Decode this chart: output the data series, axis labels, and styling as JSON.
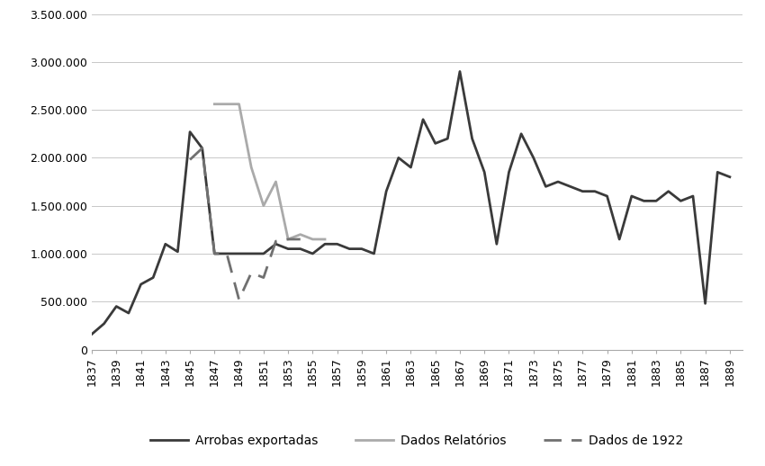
{
  "arrobas_exportadas_years": [
    1837,
    1838,
    1839,
    1840,
    1841,
    1842,
    1843,
    1844,
    1845,
    1846,
    1847,
    1848,
    1849,
    1850,
    1851,
    1852,
    1853,
    1854,
    1855,
    1856,
    1857,
    1858,
    1859,
    1860,
    1861,
    1862,
    1863,
    1864,
    1865,
    1866,
    1867,
    1868,
    1869,
    1870,
    1871,
    1872,
    1873,
    1874,
    1875,
    1876,
    1877,
    1878,
    1879,
    1880,
    1881,
    1882,
    1883,
    1884,
    1885,
    1886,
    1887,
    1888,
    1889
  ],
  "arrobas_exportadas": [
    160000,
    270000,
    450000,
    380000,
    680000,
    750000,
    1100000,
    1020000,
    2270000,
    2100000,
    1000000,
    1000000,
    1000000,
    1000000,
    1000000,
    1100000,
    1050000,
    1050000,
    1000000,
    1100000,
    1100000,
    1050000,
    1050000,
    1000000,
    1650000,
    2000000,
    1900000,
    2400000,
    2150000,
    2200000,
    2900000,
    2200000,
    1850000,
    1100000,
    1850000,
    2250000,
    2000000,
    1700000,
    1750000,
    1700000,
    1650000,
    1650000,
    1600000,
    1150000,
    1600000,
    1550000,
    1550000,
    1650000,
    1550000,
    1600000,
    480000,
    1850000,
    1800000
  ],
  "dados_relatorios_years": [
    1847,
    1848,
    1849,
    1850,
    1851,
    1852,
    1853,
    1854,
    1855,
    1856
  ],
  "dados_relatorios": [
    2560000,
    2560000,
    2560000,
    1900000,
    1500000,
    1750000,
    1150000,
    1200000,
    1150000,
    1150000
  ],
  "dados_1922_years": [
    1845,
    1846,
    1847,
    1848,
    1849,
    1850,
    1851,
    1852,
    1853,
    1854
  ],
  "dados_1922": [
    1980000,
    2100000,
    1000000,
    1000000,
    520000,
    800000,
    750000,
    1130000,
    1150000,
    1150000
  ],
  "ylim": [
    0,
    3500000
  ],
  "yticks": [
    0,
    500000,
    1000000,
    1500000,
    2000000,
    2500000,
    3000000,
    3500000
  ],
  "ytick_labels": [
    "0",
    "500.000",
    "1.000.000",
    "1.500.000",
    "2.000.000",
    "2.500.000",
    "3.000.000",
    "3.500.000"
  ],
  "xlim_left": 1837,
  "xlim_right": 1890,
  "line_color_arrobas": "#3a3a3a",
  "line_color_relatorios": "#aaaaaa",
  "line_color_1922": "#707070",
  "background_color": "#ffffff",
  "legend_labels": [
    "Arrobas exportadas",
    "Dados Relatórios",
    "Dados de 1922"
  ]
}
